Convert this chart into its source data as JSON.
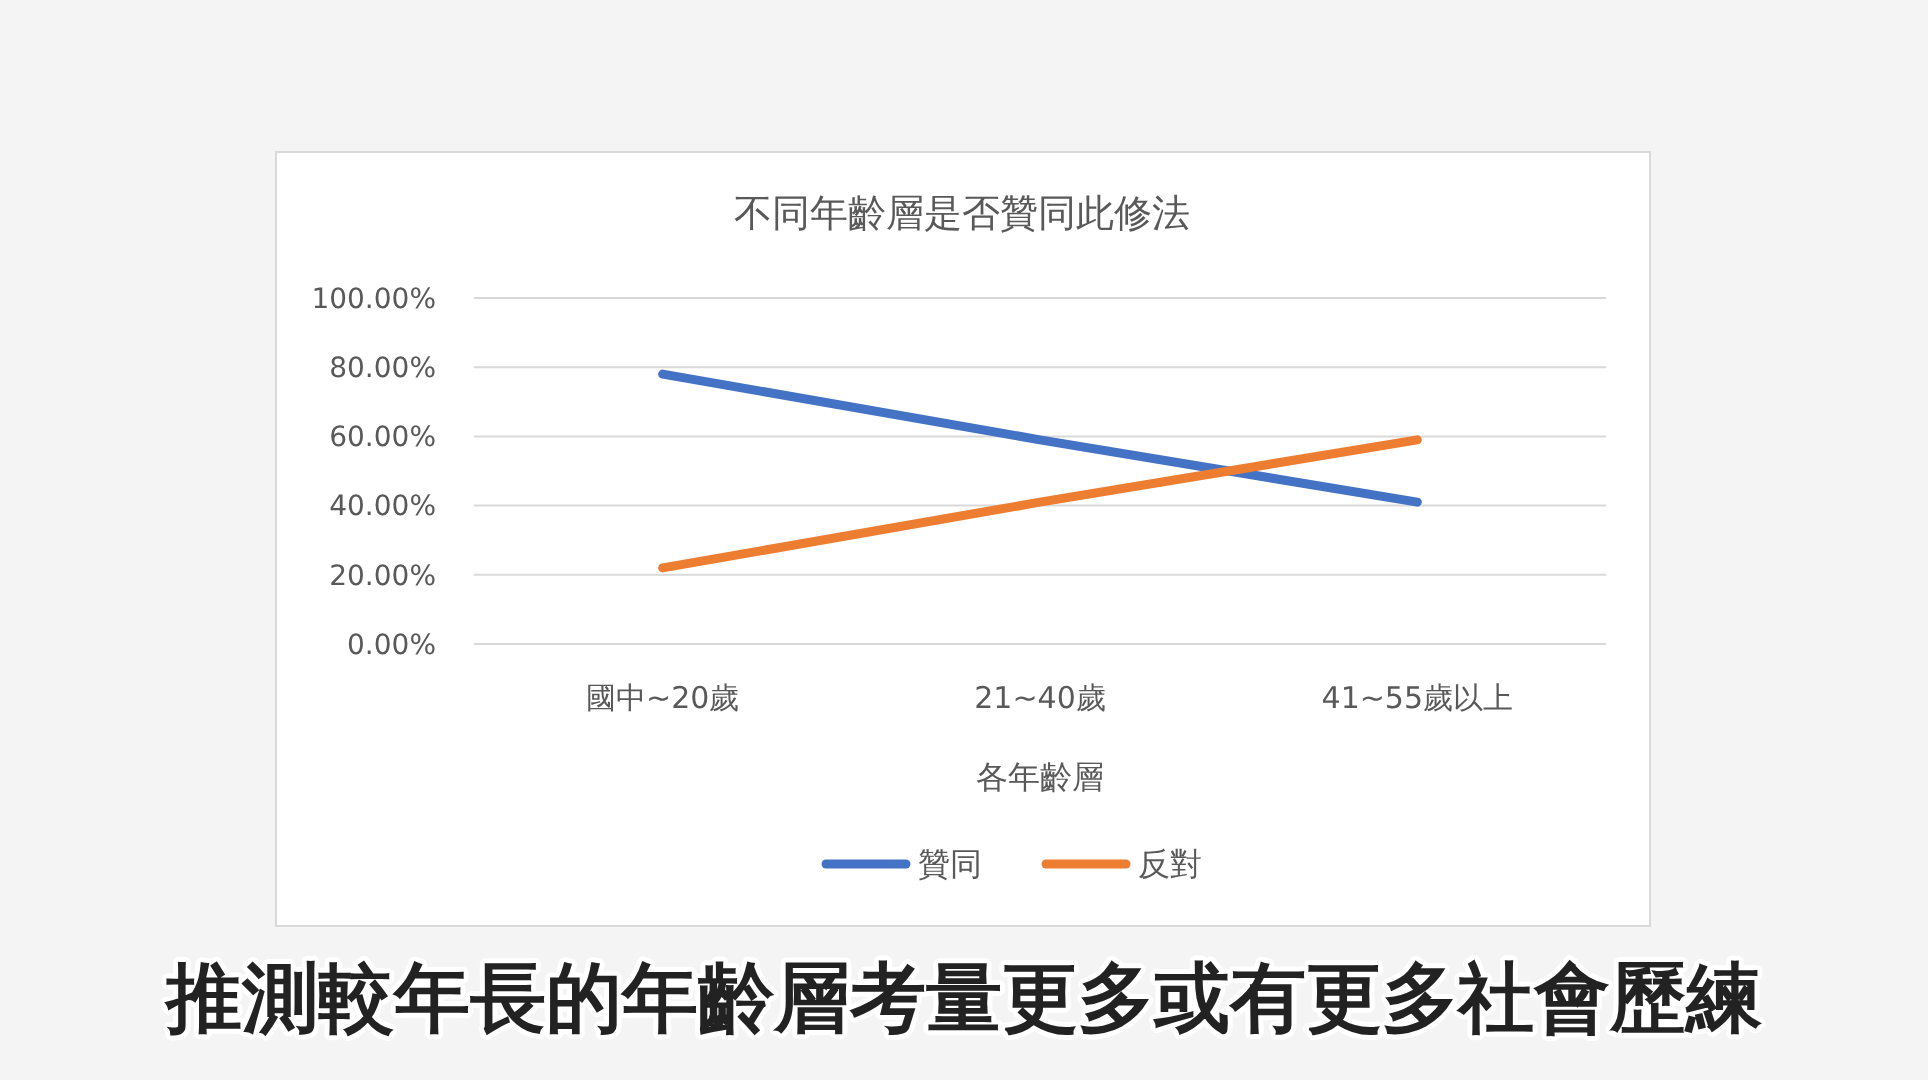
{
  "chart_data": {
    "type": "line",
    "title": "不同年齡層是否贊同此修法",
    "xlabel": "各年齡層",
    "categories": [
      "國中~20歲",
      "21~40歲",
      "41~55歲以上"
    ],
    "series": [
      {
        "name": "贊同",
        "color": "#4472c4",
        "values": [
          78,
          59,
          41
        ]
      },
      {
        "name": "反對",
        "color": "#ed7d31",
        "values": [
          22,
          41,
          59
        ]
      }
    ],
    "ylim": [
      0,
      100
    ],
    "yticks": [
      {
        "value": 0,
        "label": "0.00%"
      },
      {
        "value": 20,
        "label": "20.00%"
      },
      {
        "value": 40,
        "label": "40.00%"
      },
      {
        "value": 60,
        "label": "60.00%"
      },
      {
        "value": 80,
        "label": "80.00%"
      },
      {
        "value": 100,
        "label": "100.00%"
      }
    ],
    "grid": "y",
    "legend": "bottom",
    "line_style": "solid",
    "annotations": [
      "推測較年長的年齡層考量更多或有更多社會歷練"
    ]
  }
}
